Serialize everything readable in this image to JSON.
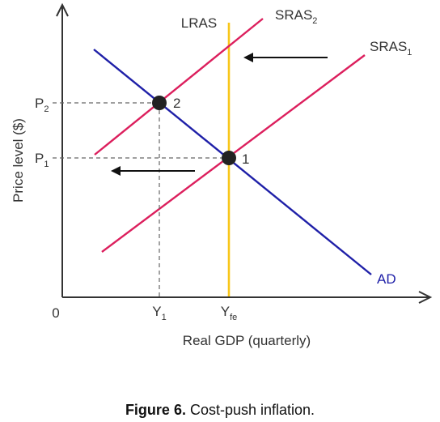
{
  "chart_data": {
    "type": "line",
    "xlabel": "Real GDP (quarterly)",
    "ylabel": "Price level ($)",
    "origin_label": "0",
    "colors": {
      "axis": "#333333",
      "sras": "#dc1f5d",
      "ad": "#1f20a8",
      "lras": "#f8c61a",
      "marker": "#222222",
      "guide": "#666666",
      "shift_arrow": "#111111"
    },
    "x_ticks": [
      {
        "label": "Y",
        "subscript": "1",
        "x": 1
      },
      {
        "label": "Y",
        "subscript": "fe",
        "x": 2
      }
    ],
    "y_ticks": [
      {
        "label": "P",
        "subscript": "1",
        "y": 1
      },
      {
        "label": "P",
        "subscript": "2",
        "y": 2
      }
    ],
    "series": [
      {
        "name": "SRAS",
        "subscript": "1",
        "kind": "sras1"
      },
      {
        "name": "SRAS",
        "subscript": "2",
        "kind": "sras2"
      },
      {
        "name": "AD",
        "subscript": "",
        "kind": "ad"
      },
      {
        "name": "LRAS",
        "subscript": "",
        "kind": "lras"
      }
    ],
    "points": [
      {
        "label": "1",
        "x": 2,
        "y": 1
      },
      {
        "label": "2",
        "x": 1,
        "y": 2
      }
    ],
    "annotations": [
      {
        "type": "shift-arrow",
        "direction": "left"
      },
      {
        "type": "shift-arrow",
        "direction": "left"
      }
    ]
  },
  "caption": {
    "label": "Figure 6.",
    "text": "Cost-push inflation."
  }
}
